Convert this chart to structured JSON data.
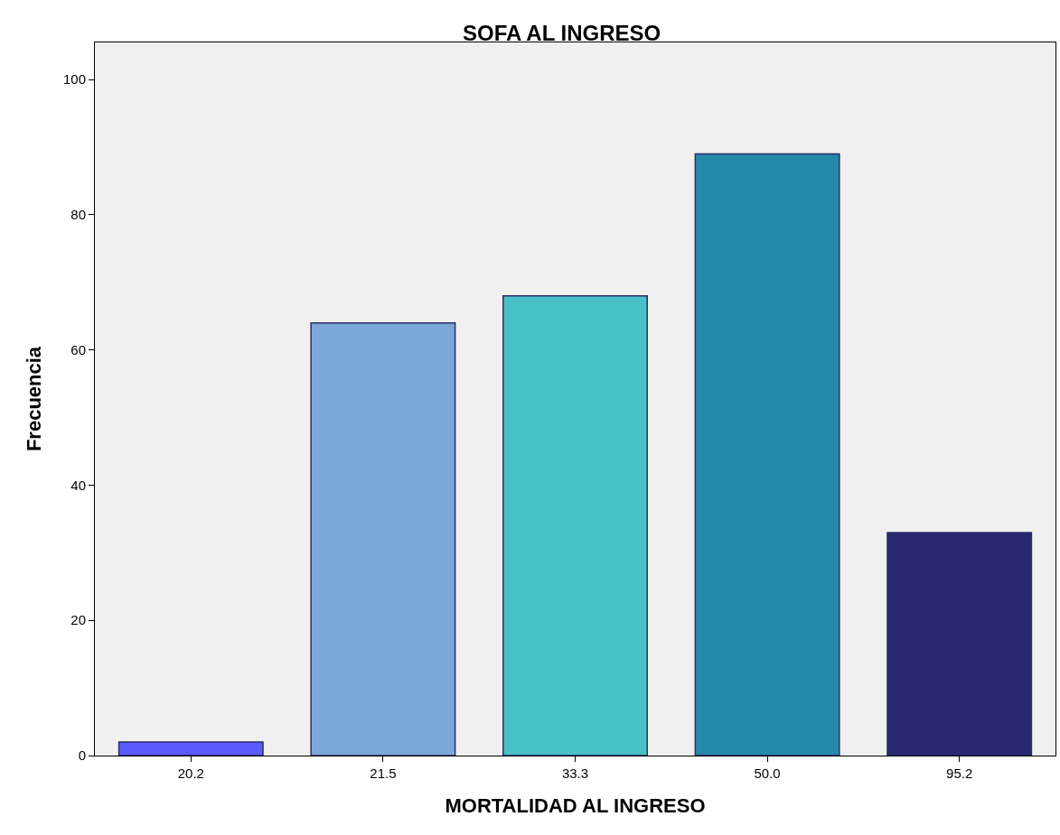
{
  "chart_data": {
    "type": "bar",
    "title": "SOFA AL INGRESO",
    "xlabel": "MORTALIDAD AL INGRESO",
    "ylabel": "Frecuencia",
    "categories": [
      "20.2",
      "21.5",
      "33.3",
      "50.0",
      "95.2"
    ],
    "values": [
      2,
      64,
      68,
      89,
      33
    ],
    "colors": [
      "#5b5bfd",
      "#7ba8d6",
      "#48c1c6",
      "#258aaa",
      "#29286f"
    ],
    "ylim": [
      0,
      105.5
    ],
    "yticks": [
      0,
      20,
      40,
      60,
      80,
      100
    ],
    "grid": false
  }
}
